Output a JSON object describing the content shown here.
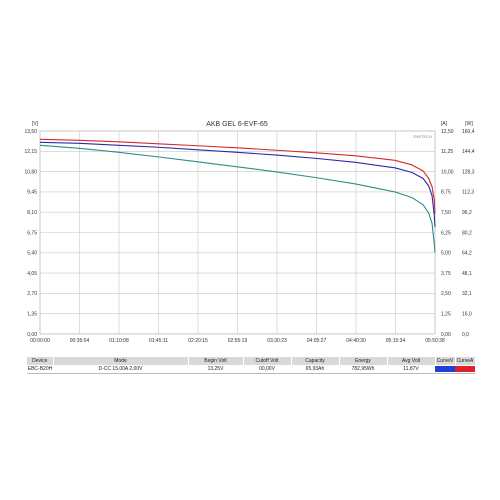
{
  "chart_data": {
    "type": "line",
    "title": "AKB GEL 6-EVF-65",
    "brand": "ZHETECH",
    "units": {
      "left": "[V]",
      "right_a": "[A]",
      "right_w": "[W]"
    },
    "x_tick_labels": [
      "00:00:00",
      "00:35:04",
      "01:10:08",
      "01:45:11",
      "02:20:15",
      "02:55:19",
      "03:30:23",
      "04:05:27",
      "04:40:30",
      "05:15:34",
      "05:50:38"
    ],
    "y_left_ticks": [
      "0,00",
      "1,35",
      "2,70",
      "4,05",
      "5,40",
      "6,75",
      "8,10",
      "9,45",
      "10,80",
      "12,15",
      "13,50"
    ],
    "y_right_a_ticks": [
      "0,00",
      "1,25",
      "2,50",
      "3,75",
      "5,00",
      "6,25",
      "7,50",
      "8,75",
      "10,00",
      "11,25",
      "12,50"
    ],
    "y_right_w_ticks": [
      "0,0",
      "16,0",
      "32,1",
      "48,1",
      "64,2",
      "80,2",
      "96,2",
      "112,3",
      "128,3",
      "144,4",
      "160,4"
    ],
    "xlim_minutes": [
      0,
      350.63
    ],
    "ylim": [
      0,
      13.5
    ],
    "grid": true,
    "series": [
      {
        "color": "#d42a2a",
        "x_minutes": [
          0,
          35,
          70,
          105,
          140,
          175,
          210,
          245,
          280,
          315,
          330,
          340,
          345,
          348,
          350
        ],
        "values": [
          12.95,
          12.88,
          12.78,
          12.65,
          12.52,
          12.38,
          12.22,
          12.05,
          11.85,
          11.55,
          11.25,
          10.85,
          10.35,
          9.8,
          8.9
        ]
      },
      {
        "color": "#2a2aa8",
        "x_minutes": [
          0,
          35,
          70,
          105,
          140,
          175,
          210,
          245,
          280,
          315,
          330,
          340,
          345,
          348,
          350
        ],
        "values": [
          12.75,
          12.68,
          12.55,
          12.42,
          12.25,
          12.08,
          11.9,
          11.68,
          11.42,
          11.05,
          10.75,
          10.35,
          9.85,
          9.2,
          7.9
        ]
      },
      {
        "color": "#2f8c86",
        "x_minutes": [
          0,
          35,
          70,
          105,
          140,
          175,
          210,
          245,
          280,
          315,
          330,
          340,
          345,
          348,
          350
        ],
        "values": [
          12.55,
          12.35,
          12.08,
          11.78,
          11.45,
          11.12,
          10.78,
          10.4,
          9.98,
          9.45,
          9.08,
          8.6,
          8.05,
          7.35,
          6.0
        ]
      }
    ]
  },
  "table": {
    "headers": [
      "Device",
      "Mode",
      "Begin Volt",
      "Cutoff Volt",
      "Capacity",
      "Energy",
      "Avg Volt",
      "CurveV",
      "CurveA"
    ],
    "row": [
      "EBC-B20H",
      "D-CC 15,00A  2,00V",
      "13,25V",
      "00,00V",
      "65,93Ah",
      "782,95Wh",
      "11,87V"
    ],
    "curve_v_color": "#1f3fd6",
    "curve_a_color": "#e0202a"
  }
}
